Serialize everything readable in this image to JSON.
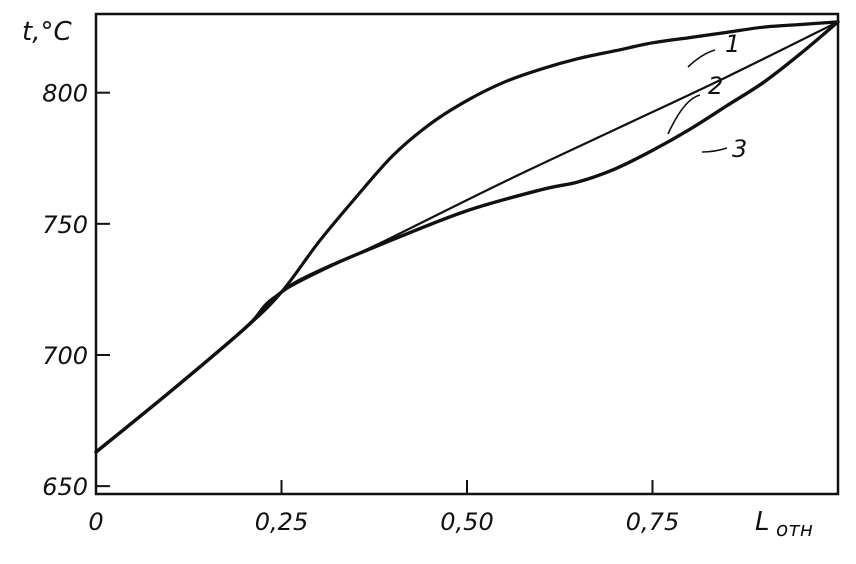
{
  "chart_data": {
    "type": "line",
    "ylabel": "t,°C",
    "xlabel": "L",
    "xlabel_sub": "отн",
    "xlim": [
      0,
      1.0
    ],
    "ylim": [
      647,
      830
    ],
    "x_ticks": [
      {
        "value": 0,
        "label": "0"
      },
      {
        "value": 0.25,
        "label": "0,25"
      },
      {
        "value": 0.5,
        "label": "0,50"
      },
      {
        "value": 0.75,
        "label": "0,75"
      }
    ],
    "y_ticks": [
      {
        "value": 650,
        "label": "650"
      },
      {
        "value": 700,
        "label": "700"
      },
      {
        "value": 750,
        "label": "750"
      },
      {
        "value": 800,
        "label": "800"
      }
    ],
    "grid": false,
    "series": [
      {
        "name": "1",
        "x": [
          0,
          0.1,
          0.2,
          0.25,
          0.3,
          0.35,
          0.4,
          0.45,
          0.5,
          0.55,
          0.6,
          0.65,
          0.7,
          0.75,
          0.8,
          0.85,
          0.9,
          0.95,
          1.0
        ],
        "y": [
          663,
          686,
          710,
          724,
          743,
          760,
          776,
          788,
          797,
          804,
          809,
          813,
          816,
          819,
          821,
          823,
          825,
          826,
          827
        ]
      },
      {
        "name": "2",
        "x": [
          0,
          0.1,
          0.2,
          0.25,
          0.4,
          0.55,
          0.7,
          0.85,
          1.0
        ],
        "y": [
          663,
          686,
          710,
          724,
          745,
          766,
          786,
          806,
          827
        ]
      },
      {
        "name": "3",
        "x": [
          0,
          0.1,
          0.2,
          0.25,
          0.3,
          0.4,
          0.5,
          0.6,
          0.65,
          0.7,
          0.75,
          0.8,
          0.85,
          0.9,
          0.95,
          1.0
        ],
        "y": [
          663,
          686,
          710,
          724,
          732,
          744,
          755,
          763,
          766,
          771,
          778,
          786,
          795,
          804,
          815,
          827
        ]
      }
    ]
  }
}
